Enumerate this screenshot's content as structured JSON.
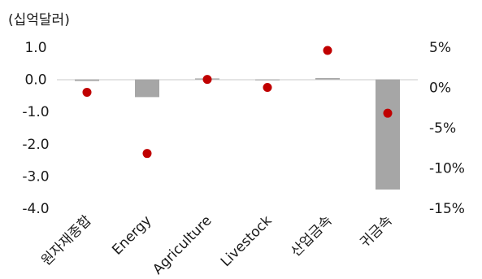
{
  "chart_data": {
    "type": "bar",
    "unit_label": "(십억달러)",
    "categories": [
      "원자재종합",
      "Energy",
      "Agriculture",
      "Livestock",
      "산업금속",
      "귀금속"
    ],
    "series": [
      {
        "type": "bar",
        "axis": "left",
        "color": "#a6a6a6",
        "values": [
          -0.05,
          -0.55,
          0.03,
          -0.01,
          0.04,
          -3.42
        ]
      },
      {
        "type": "scatter",
        "axis": "right",
        "color": "#c00000",
        "values": [
          -0.6,
          -8.2,
          1.0,
          0.0,
          4.6,
          -3.2
        ]
      }
    ],
    "ylim_left": [
      -4.0,
      1.0
    ],
    "ylim_right": [
      -15,
      5
    ],
    "yticks_left": [
      "1.0",
      "0.0",
      "-1.0",
      "-2.0",
      "-3.0",
      "-4.0"
    ],
    "yticks_right": [
      "5%",
      "0%",
      "-5%",
      "-10%",
      "-15%"
    ],
    "grid": false,
    "legend": "none"
  }
}
